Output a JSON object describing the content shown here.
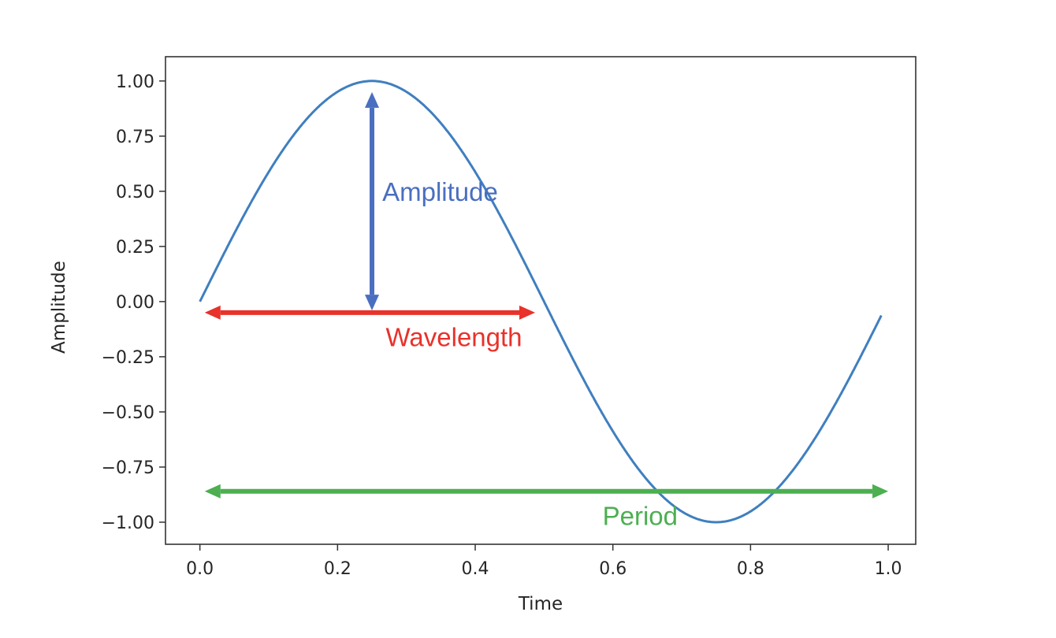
{
  "chart_data": {
    "type": "line",
    "title": "",
    "xlabel": "Time",
    "ylabel": "Amplitude",
    "xlim": [
      -0.05,
      1.04
    ],
    "ylim": [
      -1.1,
      1.11
    ],
    "xticks": [
      "0.0",
      "0.2",
      "0.4",
      "0.6",
      "0.8",
      "1.0"
    ],
    "xtick_values": [
      0,
      0.2,
      0.4,
      0.6,
      0.8,
      1.0
    ],
    "yticks": [
      "1.00",
      "0.75",
      "0.50",
      "0.25",
      "0.00",
      "−0.25",
      "−0.50",
      "−0.75",
      "−1.00"
    ],
    "ytick_values": [
      1,
      0.75,
      0.5,
      0.25,
      0,
      -0.25,
      -0.5,
      -0.75,
      -1
    ],
    "grid": false,
    "series": [
      {
        "function": "sin(2*pi*t)",
        "x_start": 0,
        "x_end": 0.99,
        "x_step": 0.01,
        "color": "#3f7fbf"
      }
    ],
    "annotations": [
      {
        "label": "Amplitude",
        "color": "#4a6fc0",
        "from": [
          0.25,
          -0.04
        ],
        "to": [
          0.25,
          0.95
        ],
        "double_headed": true,
        "label_at": [
          0.265,
          0.5
        ]
      },
      {
        "label": "Wavelength",
        "color": "#e8322a",
        "from": [
          0.007,
          -0.05
        ],
        "to": [
          0.487,
          -0.05
        ],
        "double_headed": true,
        "label_at": [
          0.27,
          -0.16
        ]
      },
      {
        "label": "Period",
        "color": "#4caf50",
        "from": [
          0.007,
          -0.86
        ],
        "to": [
          1.0,
          -0.86
        ],
        "double_headed": true,
        "label_at": [
          0.585,
          -0.97
        ]
      }
    ]
  }
}
